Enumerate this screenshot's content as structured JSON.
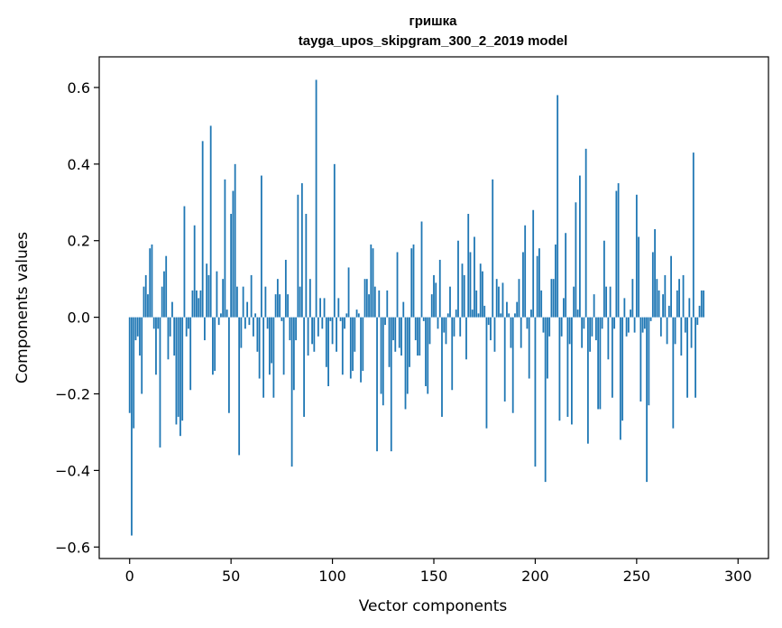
{
  "chart_data": {
    "type": "bar",
    "title": "гришка",
    "subtitle": "tayga_upos_skipgram_300_2_2019 model",
    "xlabel": "Vector components",
    "ylabel": "Components values",
    "xlim": [
      -15,
      315
    ],
    "ylim": [
      -0.63,
      0.68
    ],
    "xticks": [
      0,
      50,
      100,
      150,
      200,
      250,
      300
    ],
    "yticks": [
      -0.6,
      -0.4,
      -0.2,
      0.0,
      0.2,
      0.4,
      0.6
    ],
    "ytick_labels": [
      "−0.6",
      "−0.4",
      "−0.2",
      "0.0",
      "0.2",
      "0.4",
      "0.6"
    ],
    "xtick_labels": [
      "0",
      "50",
      "100",
      "150",
      "200",
      "250",
      "300"
    ],
    "grid": false,
    "color": "#1f77b4",
    "values": [
      -0.25,
      -0.57,
      -0.29,
      -0.06,
      -0.05,
      -0.1,
      -0.2,
      0.08,
      0.11,
      0.06,
      0.18,
      0.19,
      -0.03,
      -0.15,
      -0.03,
      -0.34,
      0.08,
      0.12,
      0.16,
      -0.11,
      -0.05,
      0.04,
      -0.1,
      -0.28,
      -0.26,
      -0.31,
      -0.27,
      0.29,
      -0.05,
      -0.03,
      -0.19,
      0.07,
      0.24,
      0.07,
      0.05,
      0.07,
      0.46,
      -0.06,
      0.14,
      0.11,
      0.5,
      -0.15,
      -0.14,
      0.12,
      -0.02,
      0.01,
      0.1,
      0.36,
      0.02,
      -0.25,
      0.27,
      0.33,
      0.4,
      0.08,
      -0.36,
      -0.08,
      0.08,
      -0.03,
      0.04,
      -0.02,
      0.11,
      -0.05,
      0.01,
      -0.09,
      -0.16,
      0.37,
      -0.21,
      0.08,
      -0.03,
      -0.15,
      -0.12,
      -0.21,
      0.06,
      0.1,
      0.06,
      -0.01,
      -0.15,
      0.15,
      0.06,
      -0.06,
      -0.39,
      -0.19,
      -0.06,
      0.32,
      0.08,
      0.35,
      -0.26,
      0.27,
      -0.1,
      0.1,
      -0.07,
      -0.09,
      0.62,
      -0.05,
      0.05,
      -0.03,
      0.05,
      -0.13,
      -0.18,
      -0.01,
      -0.07,
      0.4,
      -0.09,
      0.05,
      -0.01,
      -0.15,
      -0.03,
      0.01,
      0.13,
      -0.16,
      -0.14,
      -0.09,
      0.02,
      0.01,
      -0.17,
      -0.14,
      0.1,
      0.1,
      0.06,
      0.19,
      0.18,
      0.08,
      -0.35,
      0.07,
      -0.2,
      -0.23,
      -0.02,
      0.07,
      -0.13,
      -0.35,
      -0.06,
      -0.09,
      0.17,
      -0.08,
      -0.1,
      0.04,
      -0.24,
      -0.2,
      -0.13,
      0.18,
      0.19,
      -0.06,
      -0.1,
      -0.1,
      0.25,
      -0.01,
      -0.18,
      -0.2,
      -0.07,
      0.06,
      0.11,
      0.09,
      -0.03,
      0.15,
      -0.26,
      -0.04,
      -0.07,
      0.01,
      0.08,
      -0.19,
      -0.05,
      0.02,
      0.2,
      -0.05,
      0.14,
      0.11,
      -0.11,
      0.27,
      0.17,
      0.02,
      0.21,
      0.07,
      0.01,
      0.14,
      0.12,
      0.03,
      -0.29,
      -0.02,
      -0.06,
      0.36,
      -0.09,
      0.1,
      0.08,
      0.01,
      0.09,
      -0.22,
      0.04,
      0.01,
      -0.08,
      -0.25,
      0.01,
      0.04,
      0.1,
      -0.08,
      0.17,
      0.24,
      -0.03,
      -0.16,
      0.02,
      0.28,
      -0.39,
      0.16,
      0.18,
      0.07,
      -0.04,
      -0.43,
      -0.16,
      -0.05,
      0.1,
      0.1,
      0.19,
      0.58,
      -0.27,
      -0.05,
      0.05,
      0.22,
      -0.26,
      -0.07,
      -0.28,
      0.08,
      0.3,
      0.02,
      0.37,
      -0.08,
      -0.03,
      0.44,
      -0.33,
      -0.09,
      -0.05,
      0.06,
      -0.06,
      -0.24,
      -0.24,
      -0.03,
      0.2,
      0.08,
      -0.11,
      0.08,
      -0.21,
      -0.03,
      0.33,
      0.35,
      -0.32,
      -0.27,
      0.05,
      -0.05,
      -0.04,
      0.02,
      0.1,
      -0.04,
      0.32,
      0.21,
      -0.22,
      -0.04,
      -0.03,
      -0.43,
      -0.23,
      -0.01,
      0.17,
      0.23,
      0.1,
      0.07,
      -0.05,
      0.06,
      0.11,
      -0.07,
      0.03,
      0.16,
      -0.29,
      -0.07,
      0.07,
      0.1,
      -0.1,
      0.11,
      -0.04,
      -0.21,
      0.05,
      -0.08,
      0.43,
      -0.21,
      -0.02,
      0.03,
      0.07,
      0.07
    ]
  }
}
